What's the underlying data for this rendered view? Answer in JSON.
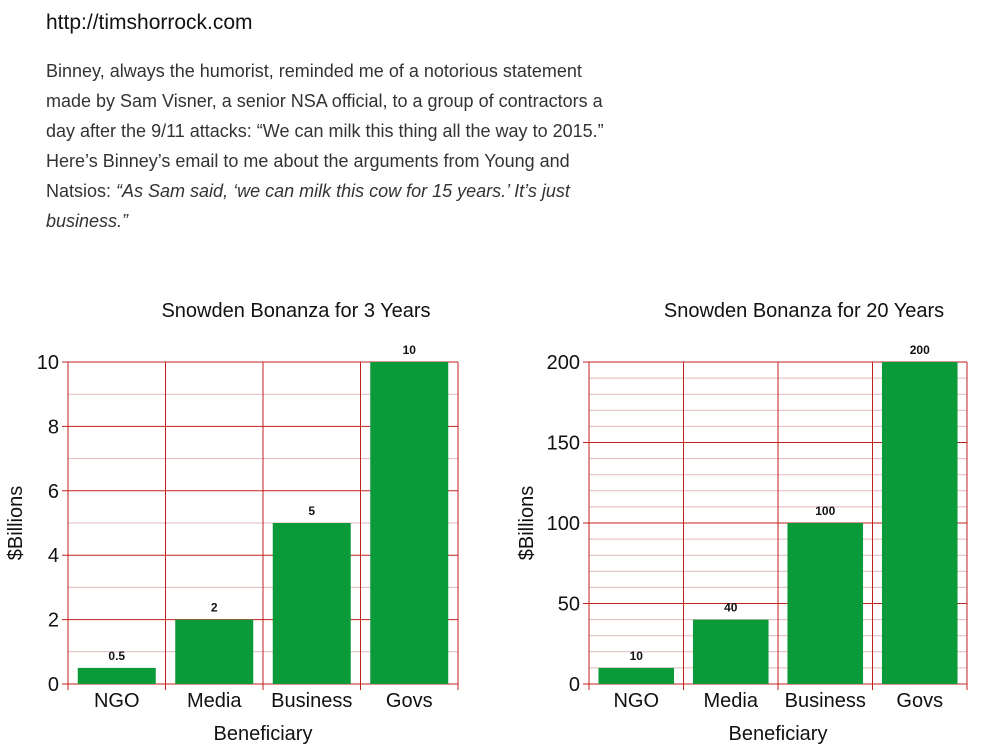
{
  "source_url": "http://timshorrock.com",
  "article": {
    "lines": [
      "Binney, always the humorist, reminded me of a notorious statement",
      "made by Sam Visner, a senior NSA official, to a group of contractors a",
      "day after the 9/11 attacks: “We can milk this thing all the way to 2015.”",
      "Here’s Binney’s email to me about the arguments from Young and"
    ],
    "line5_prefix": "Natsios: ",
    "line5_quote": "“As Sam said, ‘we can milk this cow for 15 years.’ It’s just",
    "line6_quote": "business.”"
  },
  "colors": {
    "bar": "#0a9a3a",
    "grid_major": "#c0201e",
    "grid_minor": "#e2b8b8",
    "text": "#111111"
  },
  "chart_data": [
    {
      "type": "bar",
      "title": "Snowden Bonanza for 3 Years",
      "xlabel": "Beneficiary",
      "ylabel": "$Billions",
      "categories": [
        "NGO",
        "Media",
        "Business",
        "Govs"
      ],
      "values": [
        0.5,
        2,
        5,
        10
      ],
      "value_labels": [
        "0.5",
        "2",
        "5",
        "10"
      ],
      "ylim": [
        0,
        10
      ],
      "yticks": [
        0,
        2,
        4,
        6,
        8,
        10
      ],
      "minor_step": 1,
      "grid": true
    },
    {
      "type": "bar",
      "title": "Snowden Bonanza for 20 Years",
      "xlabel": "Beneficiary",
      "ylabel": "$Billions",
      "categories": [
        "NGO",
        "Media",
        "Business",
        "Govs"
      ],
      "values": [
        10,
        40,
        100,
        200
      ],
      "value_labels": [
        "10",
        "40",
        "100",
        "200"
      ],
      "ylim": [
        0,
        200
      ],
      "yticks": [
        0,
        50,
        100,
        150,
        200
      ],
      "minor_step": 10,
      "grid": true
    }
  ]
}
